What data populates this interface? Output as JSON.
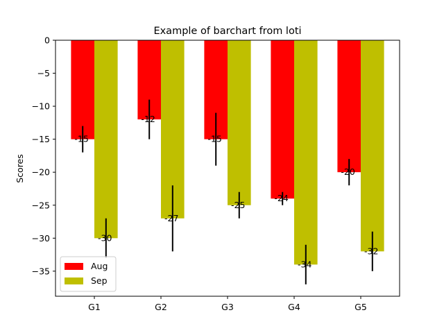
{
  "chart_data": {
    "type": "bar",
    "title": "Example of barchart from loti",
    "xlabel": "",
    "ylabel": "Scores",
    "categories": [
      "G1",
      "G2",
      "G3",
      "G4",
      "G5"
    ],
    "ylim": [
      -38.8,
      0
    ],
    "yticks": [
      0,
      -5,
      -10,
      -15,
      -20,
      -25,
      -30,
      -35
    ],
    "ytick_labels": [
      "0",
      "−5",
      "−10",
      "−15",
      "−20",
      "−25",
      "−30",
      "−35"
    ],
    "grid": false,
    "legend_position": "lower-left",
    "series": [
      {
        "name": "Aug",
        "color": "#ff0000",
        "values": [
          -15,
          -12,
          -15,
          -24,
          -20
        ],
        "errors": [
          2,
          3,
          4,
          1,
          2
        ],
        "labels": [
          "-15",
          "-12",
          "-15",
          "-24",
          "-20"
        ]
      },
      {
        "name": "Sep",
        "color": "#bfbf00",
        "values": [
          -30,
          -27,
          -25,
          -34,
          -32
        ],
        "errors": [
          3,
          5,
          2,
          3,
          3
        ],
        "labels": [
          "-30",
          "-27",
          "-25",
          "-34",
          "-32"
        ]
      }
    ]
  }
}
